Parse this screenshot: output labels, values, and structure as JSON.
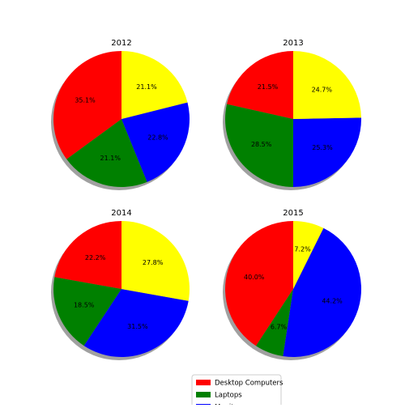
{
  "chart_data": [
    {
      "type": "pie",
      "title": "2012",
      "categories": [
        "Desktop Computers",
        "Laptops",
        "Monitors",
        null
      ],
      "colors": [
        "#ff0000",
        "#008000",
        "#0000ff",
        "#ffff00"
      ],
      "values": [
        35.1,
        21.1,
        22.8,
        21.1
      ],
      "value_labels": [
        "35.1%",
        "21.1%",
        "22.8%",
        "21.1%"
      ]
    },
    {
      "type": "pie",
      "title": "2013",
      "categories": [
        "Desktop Computers",
        "Laptops",
        "Monitors",
        null
      ],
      "colors": [
        "#ff0000",
        "#008000",
        "#0000ff",
        "#ffff00"
      ],
      "values": [
        21.5,
        28.5,
        25.3,
        24.7
      ],
      "value_labels": [
        "21.5%",
        "28.5%",
        "25.3%",
        "24.7%"
      ]
    },
    {
      "type": "pie",
      "title": "2014",
      "categories": [
        "Desktop Computers",
        "Laptops",
        "Monitors",
        null
      ],
      "colors": [
        "#ff0000",
        "#008000",
        "#0000ff",
        "#ffff00"
      ],
      "values": [
        22.2,
        18.5,
        31.5,
        27.8
      ],
      "value_labels": [
        "22.2%",
        "18.5%",
        "31.5%",
        "27.8%"
      ]
    },
    {
      "type": "pie",
      "title": "2015",
      "categories": [
        "Desktop Computers",
        "Laptops",
        "Monitors",
        null
      ],
      "colors": [
        "#ff0000",
        "#008000",
        "#0000ff",
        "#ffff00"
      ],
      "values": [
        40.0,
        6.7,
        44.2,
        7.2
      ],
      "value_labels": [
        "40.0%",
        "6.7%",
        "44.2%",
        "7.2%"
      ]
    }
  ]
}
